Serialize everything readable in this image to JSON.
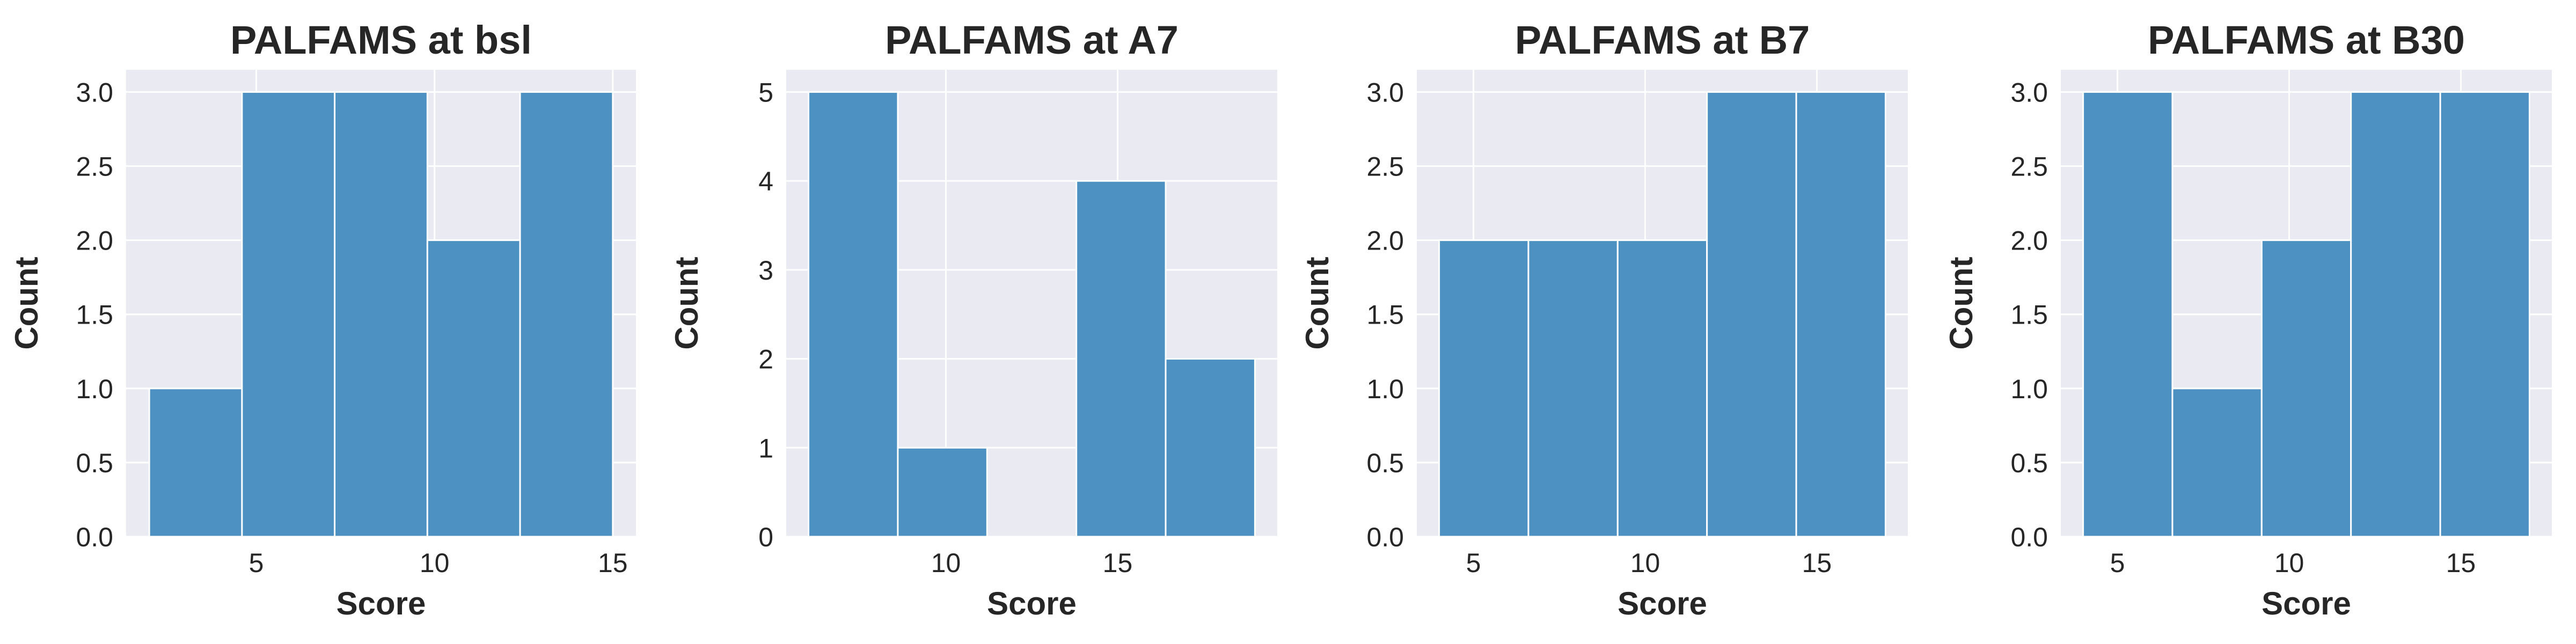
{
  "chart_data": [
    {
      "type": "bar",
      "title": "PALFAMS at bsl",
      "xlabel": "Score",
      "ylabel": "Count",
      "bins": [
        [
          2.0,
          4.6
        ],
        [
          4.6,
          7.2
        ],
        [
          7.2,
          9.8
        ],
        [
          9.8,
          12.4
        ],
        [
          12.4,
          15.0
        ]
      ],
      "values": [
        1,
        3,
        3,
        2,
        3
      ],
      "xlim": [
        1.35,
        15.65
      ],
      "ylim": [
        0,
        3.15
      ],
      "xticks": [
        5,
        10,
        15
      ],
      "xtick_labels": [
        "5",
        "10",
        "15"
      ],
      "yticks": [
        0,
        0.5,
        1.0,
        1.5,
        2.0,
        2.5,
        3.0
      ],
      "ytick_labels": [
        "0.0",
        "0.5",
        "1.0",
        "1.5",
        "2.0",
        "2.5",
        "3.0"
      ],
      "grid": true
    },
    {
      "type": "bar",
      "title": "PALFAMS at A7",
      "xlabel": "Score",
      "ylabel": "Count",
      "bins": [
        [
          6.0,
          8.6
        ],
        [
          8.6,
          11.2
        ],
        [
          11.2,
          13.8
        ],
        [
          13.8,
          16.4
        ],
        [
          16.4,
          19.0
        ]
      ],
      "values": [
        5,
        1,
        0,
        4,
        2
      ],
      "xlim": [
        5.35,
        19.65
      ],
      "ylim": [
        0,
        5.25
      ],
      "xticks": [
        10,
        15
      ],
      "xtick_labels": [
        "10",
        "15"
      ],
      "yticks": [
        0,
        1,
        2,
        3,
        4,
        5
      ],
      "ytick_labels": [
        "0",
        "1",
        "2",
        "3",
        "4",
        "5"
      ],
      "grid": true
    },
    {
      "type": "bar",
      "title": "PALFAMS at B7",
      "xlabel": "Score",
      "ylabel": "Count",
      "bins": [
        [
          4.0,
          6.6
        ],
        [
          6.6,
          9.2
        ],
        [
          9.2,
          11.8
        ],
        [
          11.8,
          14.4
        ],
        [
          14.4,
          17.0
        ]
      ],
      "values": [
        2,
        2,
        2,
        3,
        3
      ],
      "xlim": [
        3.35,
        17.65
      ],
      "ylim": [
        0,
        3.15
      ],
      "xticks": [
        5,
        10,
        15
      ],
      "xtick_labels": [
        "5",
        "10",
        "15"
      ],
      "yticks": [
        0,
        0.5,
        1.0,
        1.5,
        2.0,
        2.5,
        3.0
      ],
      "ytick_labels": [
        "0.0",
        "0.5",
        "1.0",
        "1.5",
        "2.0",
        "2.5",
        "3.0"
      ],
      "grid": true
    },
    {
      "type": "bar",
      "title": "PALFAMS at B30",
      "xlabel": "Score",
      "ylabel": "Count",
      "bins": [
        [
          4.0,
          6.6
        ],
        [
          6.6,
          9.2
        ],
        [
          9.2,
          11.8
        ],
        [
          11.8,
          14.4
        ],
        [
          14.4,
          17.0
        ]
      ],
      "values": [
        3,
        1,
        2,
        3,
        3
      ],
      "xlim": [
        3.35,
        17.65
      ],
      "ylim": [
        0,
        3.15
      ],
      "xticks": [
        5,
        10,
        15
      ],
      "xtick_labels": [
        "5",
        "10",
        "15"
      ],
      "yticks": [
        0,
        0.5,
        1.0,
        1.5,
        2.0,
        2.5,
        3.0
      ],
      "ytick_labels": [
        "0.0",
        "0.5",
        "1.0",
        "1.5",
        "2.0",
        "2.5",
        "3.0"
      ],
      "grid": true
    }
  ],
  "colors": {
    "bar": "#4c91c2",
    "background": "#eaeaf2",
    "grid": "#ffffff",
    "text": "#262626"
  }
}
